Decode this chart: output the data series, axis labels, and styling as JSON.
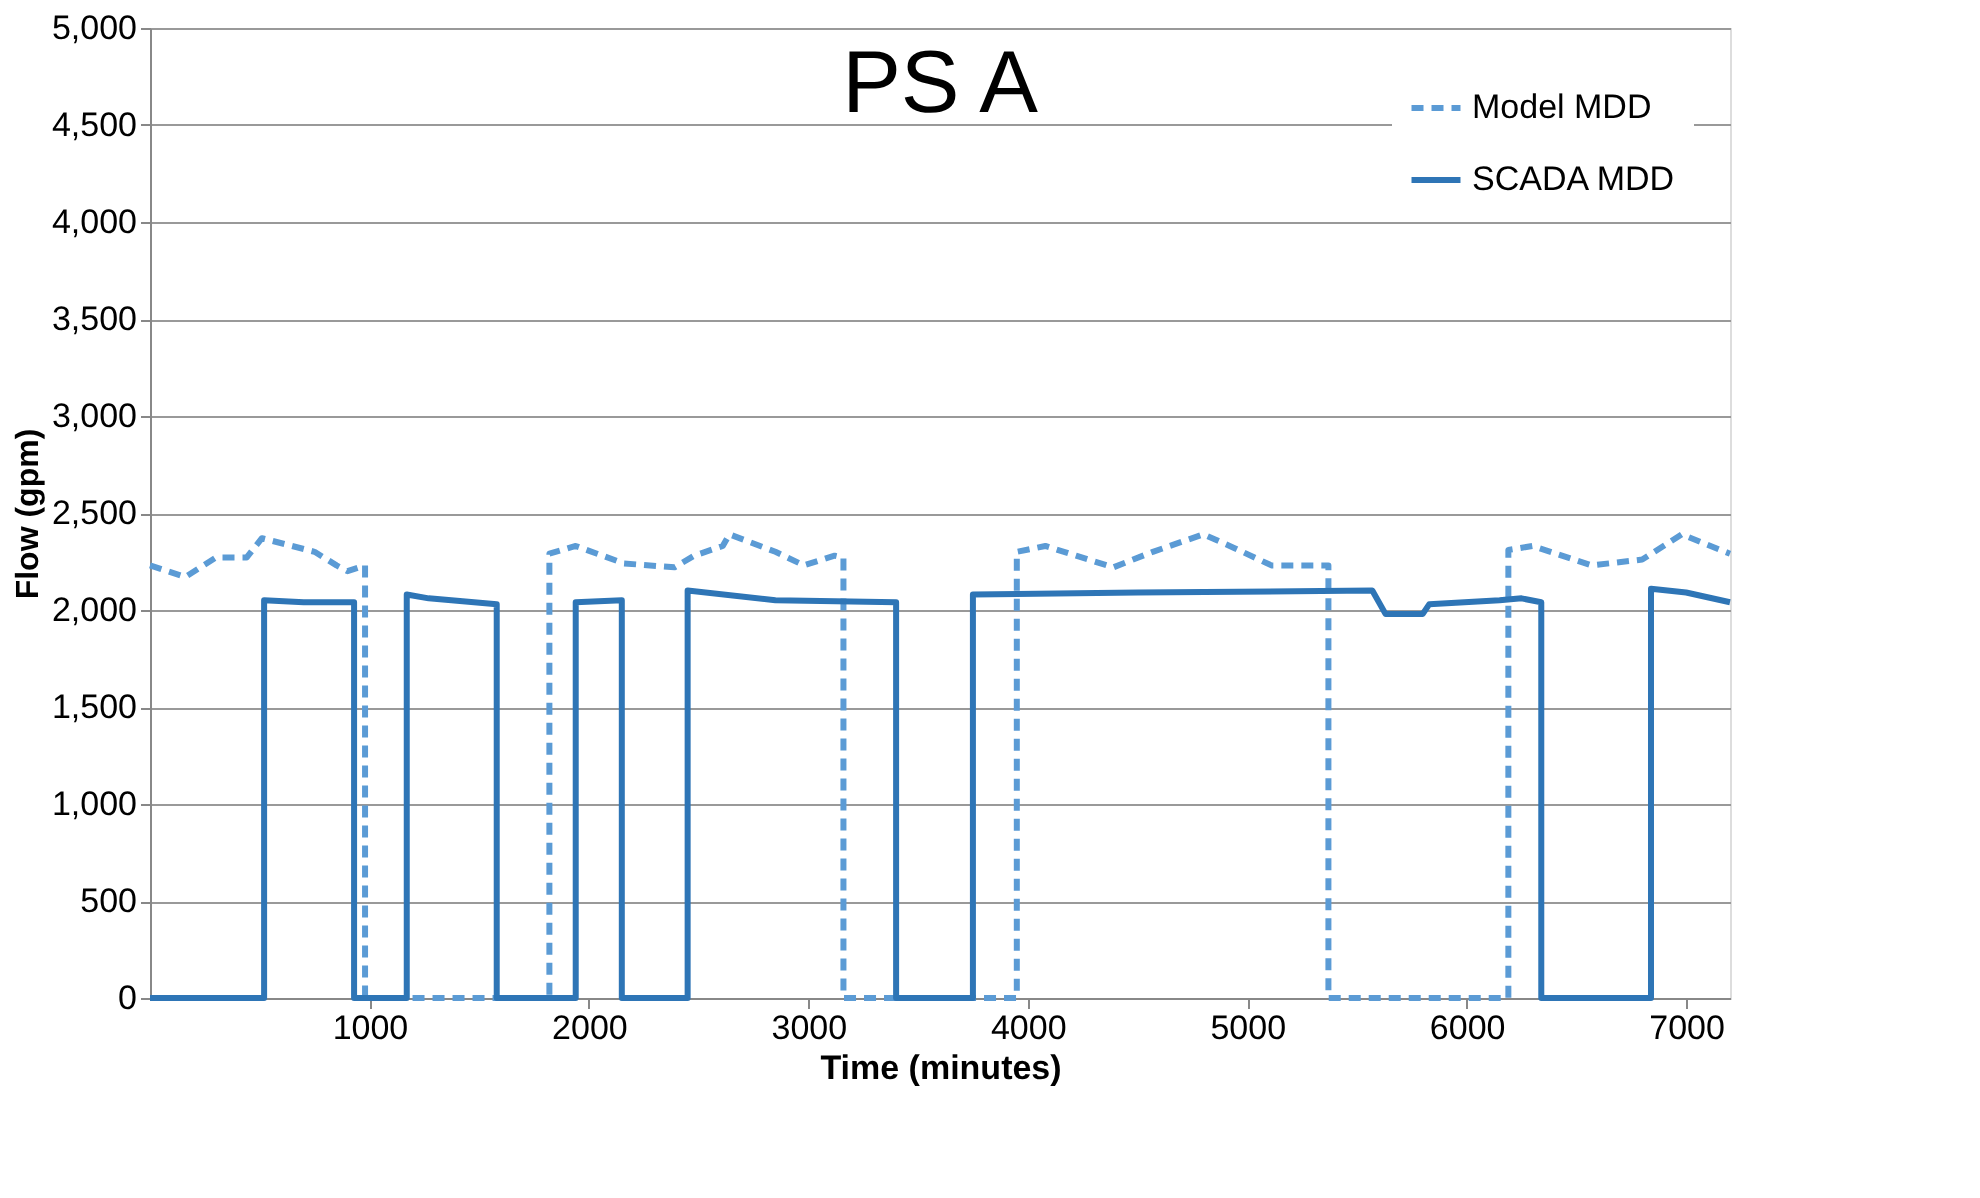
{
  "chart_data": {
    "type": "line",
    "title": "PS A",
    "xlabel": "Time (minutes)",
    "ylabel": "Flow (gpm)",
    "xlim": [
      0,
      7200
    ],
    "xticks": [
      1000,
      2000,
      3000,
      4000,
      5000,
      6000,
      7000
    ],
    "ylim": [
      0,
      5000
    ],
    "yticks": [
      0,
      500,
      {
        "value": 1000,
        "label": "1,000"
      },
      {
        "value": 1500,
        "label": "1,500"
      },
      {
        "value": 2000,
        "label": "2,000"
      },
      {
        "value": 2500,
        "label": "2,500"
      },
      {
        "value": 3000,
        "label": "3,000"
      },
      {
        "value": 3500,
        "label": "3,500"
      },
      {
        "value": 4000,
        "label": "4,000"
      },
      {
        "value": 4500,
        "label": "4,500"
      },
      {
        "value": 5000,
        "label": "5,000"
      }
    ],
    "grid": "y",
    "legend": "top right",
    "series": [
      {
        "name": "Model MDD",
        "color": "#5b9bd5",
        "line_style": "dashed",
        "x": [
          0,
          160,
          300,
          440,
          510,
          750,
          850,
          900,
          980,
          980,
          1820,
          1820,
          1940,
          2160,
          2390,
          2480,
          2610,
          2640,
          2850,
          2980,
          3120,
          3160,
          3160,
          3950,
          3950,
          4080,
          4220,
          4390,
          4570,
          4800,
          4940,
          5110,
          5370,
          5370,
          6190,
          6190,
          6300,
          6570,
          6800,
          6980,
          7200
        ],
        "values": [
          2230,
          2170,
          2270,
          2270,
          2370,
          2300,
          2230,
          2200,
          2230,
          0,
          0,
          2290,
          2330,
          2240,
          2220,
          2280,
          2330,
          2390,
          2300,
          2230,
          2280,
          2270,
          0,
          0,
          2300,
          2330,
          2280,
          2220,
          2300,
          2390,
          2320,
          2230,
          2230,
          0,
          0,
          2310,
          2330,
          2230,
          2260,
          2390,
          2290
        ]
      },
      {
        "name": "SCADA MDD",
        "color": "#2e75b6",
        "line_style": "solid",
        "x": [
          0,
          520,
          520,
          700,
          930,
          930,
          1170,
          1170,
          1270,
          1580,
          1580,
          1940,
          1940,
          2150,
          2150,
          2450,
          2450,
          2850,
          3400,
          3400,
          3750,
          3750,
          4500,
          5570,
          5630,
          5800,
          5830,
          6150,
          6250,
          6340,
          6340,
          6840,
          6840,
          7000,
          7200
        ],
        "values": [
          0,
          0,
          2050,
          2040,
          2040,
          0,
          0,
          2080,
          2060,
          2030,
          0,
          0,
          2040,
          2050,
          0,
          0,
          2100,
          2050,
          2040,
          0,
          0,
          2080,
          2090,
          2100,
          1980,
          1980,
          2030,
          2050,
          2060,
          2040,
          0,
          0,
          2110,
          2090,
          2040
        ]
      }
    ]
  }
}
